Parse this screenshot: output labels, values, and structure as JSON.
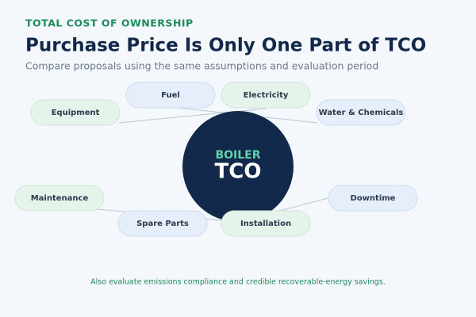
{
  "header": {
    "kicker": "TOTAL COST OF OWNERSHIP",
    "title": "Purchase Price Is Only One Part of TCO",
    "subtitle": "Compare proposals using the same assumptions and evaluation period"
  },
  "center": {
    "label": "BOILER",
    "title": "TCO"
  },
  "nodes": [
    {
      "label": "Equipment"
    },
    {
      "label": "Fuel"
    },
    {
      "label": "Electricity"
    },
    {
      "label": "Water & Chemicals"
    },
    {
      "label": "Maintenance"
    },
    {
      "label": "Spare Parts"
    },
    {
      "label": "Installation"
    },
    {
      "label": "Downtime"
    }
  ],
  "footnote": "Also evaluate emissions compliance and credible recoverable-energy savings."
}
